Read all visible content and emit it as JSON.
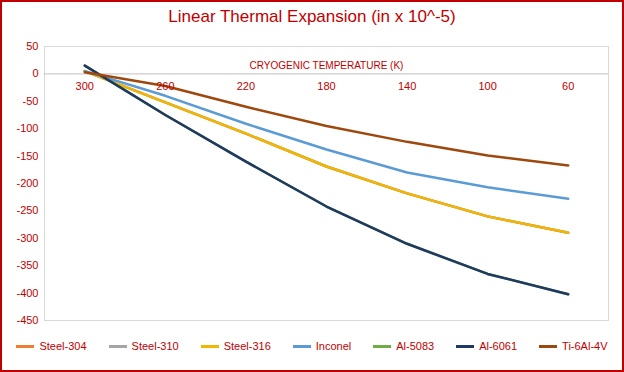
{
  "chart_data": {
    "type": "line",
    "title": "Linear Thermal Expansion (in x 10^-5)",
    "x_label": "CRYOGENIC TEMPERATURE (K)",
    "x": [
      300,
      260,
      220,
      180,
      140,
      100,
      60
    ],
    "xlim": [
      320,
      40
    ],
    "xticks": [
      300,
      260,
      220,
      180,
      140,
      100,
      60
    ],
    "ylim": [
      -450,
      50
    ],
    "yticks": [
      -450,
      -400,
      -350,
      -300,
      -250,
      -200,
      -150,
      -100,
      -50,
      0,
      50
    ],
    "grid": false,
    "legend": "bottom",
    "series": [
      {
        "name": "Steel-304",
        "color": "#ED7D31",
        "values": [
          5,
          -52,
          -109,
          -169,
          -218,
          -260,
          -290
        ]
      },
      {
        "name": "Steel-310",
        "color": "#A5A5A5",
        "values": [
          5,
          -52,
          -109,
          -169,
          -218,
          -260,
          -290
        ]
      },
      {
        "name": "Steel-316",
        "color": "#F2B500",
        "values": [
          5,
          -52,
          -109,
          -169,
          -218,
          -260,
          -290
        ]
      },
      {
        "name": "Inconel",
        "color": "#5B9BD5",
        "values": [
          5,
          -40,
          -91,
          -138,
          -180,
          -207,
          -228
        ]
      },
      {
        "name": "Al-5083",
        "color": "#70AD47",
        "values": [
          15,
          -75,
          -160,
          -242,
          -310,
          -365,
          -402
        ]
      },
      {
        "name": "Al-6061",
        "color": "#203864",
        "values": [
          15,
          -75,
          -160,
          -242,
          -310,
          -365,
          -402
        ]
      },
      {
        "name": "Ti-6Al-4V",
        "color": "#9E480E",
        "values": [
          3,
          -22,
          -60,
          -95,
          -124,
          -149,
          -167
        ]
      }
    ]
  }
}
